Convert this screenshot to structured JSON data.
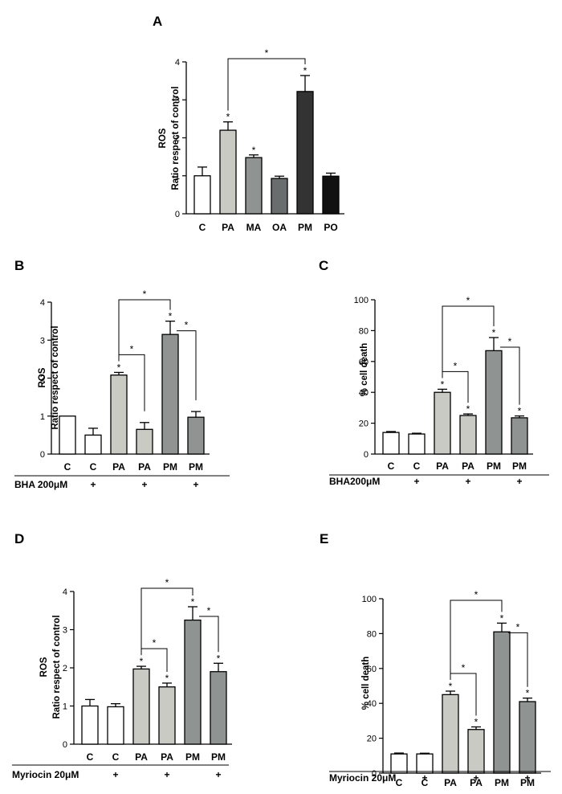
{
  "chart_data": [
    {
      "panel": "A",
      "type": "bar",
      "ylabel_lines": [
        "ROS",
        "Ratio respect of control"
      ],
      "ylim": [
        0,
        4
      ],
      "yticks": [
        0,
        1,
        2,
        3,
        4
      ],
      "categories": [
        "C",
        "PA",
        "MA",
        "OA",
        "PM",
        "PO"
      ],
      "values": [
        1.0,
        2.2,
        1.48,
        0.93,
        3.22,
        0.99
      ],
      "errors": [
        0.23,
        0.22,
        0.07,
        0.06,
        0.42,
        0.08
      ],
      "fills": [
        "#ffffff",
        "#c9cac4",
        "#8f9493",
        "#6a6d6d",
        "#333333",
        "#111111"
      ],
      "stars": [
        false,
        true,
        true,
        false,
        true,
        false
      ],
      "brackets": [
        {
          "from": 1,
          "to": 4,
          "label": "*"
        }
      ],
      "treatment": null
    },
    {
      "panel": "B",
      "type": "bar",
      "ylabel_lines": [
        "ROS",
        "Ratio respect of control"
      ],
      "ylim": [
        0,
        4
      ],
      "yticks": [
        0,
        1,
        2,
        3,
        4
      ],
      "categories": [
        "C",
        "C",
        "PA",
        "PA",
        "PM",
        "PM"
      ],
      "values": [
        1.0,
        0.5,
        2.08,
        0.65,
        3.15,
        0.97
      ],
      "errors": [
        0.0,
        0.18,
        0.07,
        0.18,
        0.35,
        0.15
      ],
      "fills": [
        "#ffffff",
        "#ffffff",
        "#c9cac4",
        "#c9cac4",
        "#8f9493",
        "#8f9493"
      ],
      "stars": [
        false,
        false,
        true,
        false,
        true,
        false
      ],
      "brackets": [
        {
          "from": 2,
          "to": 4,
          "label": "*"
        },
        {
          "from": 2,
          "to": 3,
          "label": "*"
        },
        {
          "from": 4,
          "to": 5,
          "label": "*"
        }
      ],
      "treatment": {
        "label": "BHA 200μM",
        "marks": [
          "",
          "+",
          "",
          "+",
          "",
          "+"
        ]
      }
    },
    {
      "panel": "C",
      "type": "bar",
      "ylabel_lines": [
        "% cell death"
      ],
      "ylim": [
        0,
        100
      ],
      "yticks": [
        0,
        20,
        40,
        60,
        80,
        100
      ],
      "categories": [
        "C",
        "C",
        "PA",
        "PA",
        "PM",
        "PM"
      ],
      "values": [
        14,
        13,
        40,
        25,
        67,
        23.5
      ],
      "errors": [
        0.6,
        0.5,
        2.0,
        1.0,
        8.5,
        1.2
      ],
      "fills": [
        "#ffffff",
        "#ffffff",
        "#c9cac4",
        "#c9cac4",
        "#8f9493",
        "#8f9493"
      ],
      "stars": [
        false,
        false,
        true,
        true,
        true,
        true
      ],
      "brackets": [
        {
          "from": 2,
          "to": 4,
          "label": "*"
        },
        {
          "from": 2,
          "to": 3,
          "label": "*"
        },
        {
          "from": 4,
          "to": 5,
          "label": "*"
        }
      ],
      "treatment": {
        "label": "BHA200μM",
        "marks": [
          "",
          "+",
          "",
          "+",
          "",
          "+"
        ]
      }
    },
    {
      "panel": "D",
      "type": "bar",
      "ylabel_lines": [
        "ROS",
        "Ratio respect of control"
      ],
      "ylim": [
        0,
        4
      ],
      "yticks": [
        0,
        1,
        2,
        3,
        4
      ],
      "categories": [
        "C",
        "C",
        "PA",
        "PA",
        "PM",
        "PM"
      ],
      "values": [
        1.0,
        0.98,
        1.97,
        1.5,
        3.25,
        1.9
      ],
      "errors": [
        0.17,
        0.08,
        0.07,
        0.1,
        0.35,
        0.22
      ],
      "fills": [
        "#ffffff",
        "#ffffff",
        "#c9cac4",
        "#c9cac4",
        "#8f9493",
        "#8f9493"
      ],
      "stars": [
        false,
        false,
        true,
        true,
        true,
        true
      ],
      "brackets": [
        {
          "from": 2,
          "to": 4,
          "label": "*"
        },
        {
          "from": 2,
          "to": 3,
          "label": "*"
        },
        {
          "from": 4,
          "to": 5,
          "label": "*"
        }
      ],
      "treatment": {
        "label": "Myriocin 20μM",
        "marks": [
          "",
          "+",
          "",
          "+",
          "",
          "+"
        ]
      }
    },
    {
      "panel": "E",
      "type": "bar",
      "ylabel_lines": [
        "% cell death"
      ],
      "ylim": [
        0,
        100
      ],
      "yticks": [
        0,
        20,
        40,
        60,
        80,
        100
      ],
      "categories": [
        "C",
        "C",
        "PA",
        "PA",
        "PM",
        "PM"
      ],
      "values": [
        11,
        11,
        45,
        25,
        81,
        41
      ],
      "errors": [
        0.5,
        0.4,
        2.0,
        1.5,
        5.0,
        2.0
      ],
      "fills": [
        "#ffffff",
        "#ffffff",
        "#c9cac4",
        "#c9cac4",
        "#8f9493",
        "#8f9493"
      ],
      "stars": [
        false,
        false,
        true,
        true,
        true,
        true
      ],
      "brackets": [
        {
          "from": 2,
          "to": 4,
          "label": "*"
        },
        {
          "from": 2,
          "to": 3,
          "label": "*"
        },
        {
          "from": 4,
          "to": 5,
          "label": "*"
        }
      ],
      "treatment": {
        "label": "Myriocin 20μM",
        "marks": [
          "",
          "+",
          "",
          "+",
          "",
          "+"
        ]
      }
    }
  ]
}
